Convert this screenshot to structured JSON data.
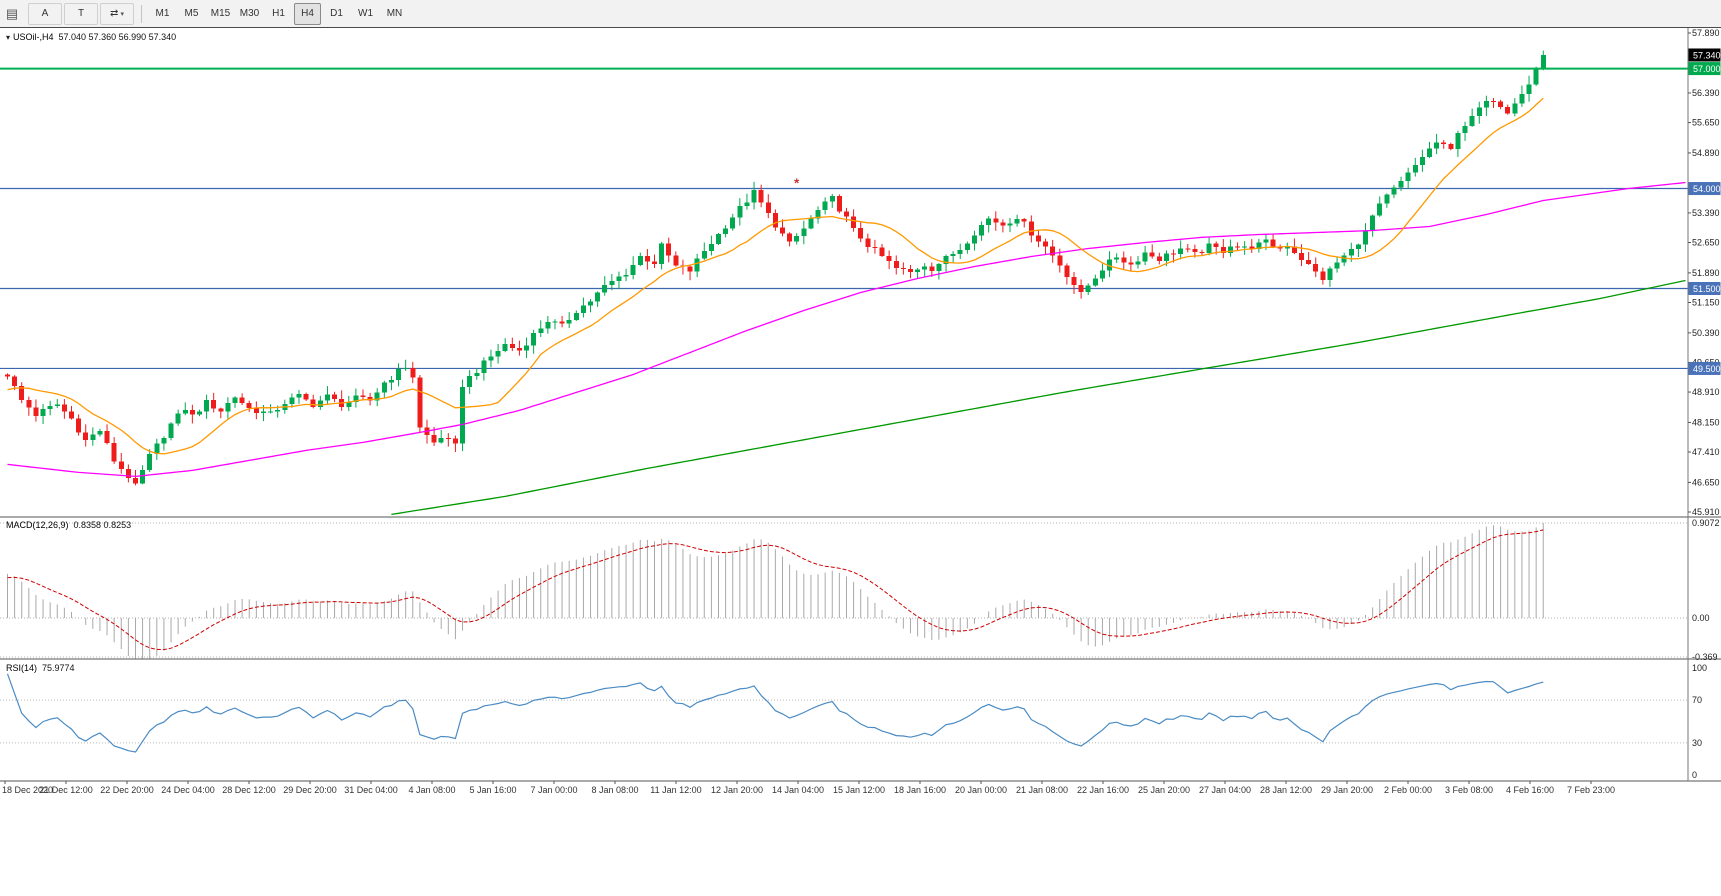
{
  "toolbar": {
    "window_icon_glyph": "▤",
    "tools": [
      {
        "name": "tool-a",
        "label": "A"
      },
      {
        "name": "tool-t",
        "label": "T"
      },
      {
        "name": "chart-shift",
        "glyph": "⇄",
        "caret": "▾"
      }
    ],
    "timeframes": [
      "M1",
      "M5",
      "M15",
      "M30",
      "H1",
      "H4",
      "D1",
      "W1",
      "MN"
    ],
    "active_timeframe": "H4"
  },
  "chart": {
    "title_symbol": "USOil-,H4",
    "title_ohlc": "57.040 57.360 56.990 57.340",
    "dropdown_glyph": "▾",
    "current_price": {
      "label": "57.340",
      "price": 57.34,
      "bg": "#000000",
      "fg": "#ffffff"
    },
    "price_axis_ticks": [
      "57.890",
      "56.390",
      "55.650",
      "54.890",
      "53.390",
      "52.650",
      "51.890",
      "51.150",
      "50.390",
      "49.650",
      "48.910",
      "48.150",
      "47.410",
      "46.650",
      "45.910"
    ],
    "horizontal_lines": [
      {
        "price": 57.0,
        "label": "57.000",
        "color": "#00b050",
        "width": 2
      },
      {
        "price": 54.0,
        "label": "54.000",
        "color": "#3c66b0",
        "width": 1.2
      },
      {
        "price": 51.5,
        "label": "51.500",
        "color": "#3c66b0",
        "width": 1.2
      },
      {
        "price": 49.5,
        "label": "49.500",
        "color": "#3c66b0",
        "width": 1.2
      }
    ],
    "annotations": [
      {
        "index": 111,
        "price": 54.12,
        "glyph": "*",
        "color": "#d03030"
      }
    ]
  },
  "macd_panel": {
    "name": "MACD(12,26,9)",
    "values": "0.8358 0.8253",
    "axis_labels": [
      "0.9072",
      "0.00",
      "-0.369"
    ]
  },
  "rsi_panel": {
    "name": "RSI(14)",
    "value": "75.9774",
    "axis_labels": [
      "100",
      "70",
      "30",
      "0"
    ],
    "levels": [
      70,
      30
    ]
  },
  "time_axis": {
    "labels": [
      "18 Dec 2020",
      "21 Dec 12:00",
      "22 Dec 20:00",
      "24 Dec 04:00",
      "28 Dec 12:00",
      "29 Dec 20:00",
      "31 Dec 04:00",
      "4 Jan 08:00",
      "5 Jan 16:00",
      "7 Jan 00:00",
      "8 Jan 08:00",
      "11 Jan 12:00",
      "12 Jan 20:00",
      "14 Jan 04:00",
      "15 Jan 12:00",
      "18 Jan 16:00",
      "20 Jan 00:00",
      "21 Jan 08:00",
      "22 Jan 16:00",
      "25 Jan 20:00",
      "27 Jan 04:00",
      "28 Jan 12:00",
      "29 Jan 20:00",
      "2 Feb 00:00",
      "3 Feb 08:00",
      "4 Feb 16:00",
      "7 Feb 23:00"
    ]
  },
  "chart_data": {
    "type": "candlestick",
    "symbol": "USOil-",
    "timeframe": "H4",
    "ohlc_display": {
      "open": 57.04,
      "high": 57.36,
      "low": 56.99,
      "close": 57.34
    },
    "last_close": 57.34,
    "candle_count": 217,
    "price_axis_range": [
      45.91,
      57.89
    ],
    "close_anchors": [
      [
        0,
        49.35
      ],
      [
        2,
        48.7
      ],
      [
        4,
        48.35
      ],
      [
        7,
        48.6
      ],
      [
        9,
        48.25
      ],
      [
        11,
        47.7
      ],
      [
        13,
        47.95
      ],
      [
        15,
        47.2
      ],
      [
        17,
        46.8
      ],
      [
        18,
        46.55
      ],
      [
        20,
        47.3
      ],
      [
        23,
        48.1
      ],
      [
        25,
        48.5
      ],
      [
        26,
        48.3
      ],
      [
        28,
        48.65
      ],
      [
        30,
        48.45
      ],
      [
        32,
        48.8
      ],
      [
        34,
        48.5
      ],
      [
        37,
        48.35
      ],
      [
        39,
        48.65
      ],
      [
        41,
        48.8
      ],
      [
        43,
        48.6
      ],
      [
        45,
        48.8
      ],
      [
        47,
        48.6
      ],
      [
        49,
        48.75
      ],
      [
        51,
        48.7
      ],
      [
        53,
        49.15
      ],
      [
        56,
        49.55
      ],
      [
        57,
        49.3
      ],
      [
        58,
        48.0
      ],
      [
        60,
        47.65
      ],
      [
        61,
        47.8
      ],
      [
        63,
        47.55
      ],
      [
        64,
        49.1
      ],
      [
        66,
        49.45
      ],
      [
        68,
        49.8
      ],
      [
        70,
        50.1
      ],
      [
        72,
        49.95
      ],
      [
        74,
        50.35
      ],
      [
        76,
        50.7
      ],
      [
        78,
        50.55
      ],
      [
        80,
        50.95
      ],
      [
        82,
        51.2
      ],
      [
        84,
        51.55
      ],
      [
        87,
        51.9
      ],
      [
        89,
        52.3
      ],
      [
        91,
        52.15
      ],
      [
        92,
        52.55
      ],
      [
        94,
        52.05
      ],
      [
        96,
        51.95
      ],
      [
        98,
        52.45
      ],
      [
        100,
        52.85
      ],
      [
        102,
        53.3
      ],
      [
        104,
        53.7
      ],
      [
        105,
        53.9
      ],
      [
        107,
        53.35
      ],
      [
        109,
        52.85
      ],
      [
        110,
        52.6
      ],
      [
        112,
        53.0
      ],
      [
        114,
        53.45
      ],
      [
        116,
        53.75
      ],
      [
        118,
        53.25
      ],
      [
        119,
        52.95
      ],
      [
        121,
        52.6
      ],
      [
        123,
        52.3
      ],
      [
        125,
        52.0
      ],
      [
        127,
        51.9
      ],
      [
        129,
        52.1
      ],
      [
        130,
        52.0
      ],
      [
        132,
        52.25
      ],
      [
        134,
        52.5
      ],
      [
        136,
        52.9
      ],
      [
        138,
        53.25
      ],
      [
        140,
        53.1
      ],
      [
        142,
        53.3
      ],
      [
        144,
        52.9
      ],
      [
        146,
        52.55
      ],
      [
        148,
        52.1
      ],
      [
        150,
        51.6
      ],
      [
        151,
        51.35
      ],
      [
        153,
        51.8
      ],
      [
        154,
        52.0
      ],
      [
        156,
        52.3
      ],
      [
        158,
        52.1
      ],
      [
        160,
        52.4
      ],
      [
        162,
        52.25
      ],
      [
        165,
        52.5
      ],
      [
        167,
        52.35
      ],
      [
        169,
        52.55
      ],
      [
        171,
        52.45
      ],
      [
        172,
        52.6
      ],
      [
        174,
        52.5
      ],
      [
        177,
        52.65
      ],
      [
        179,
        52.5
      ],
      [
        180,
        52.6
      ],
      [
        182,
        52.25
      ],
      [
        184,
        51.9
      ],
      [
        185,
        51.75
      ],
      [
        187,
        52.15
      ],
      [
        189,
        52.45
      ],
      [
        191,
        52.9
      ],
      [
        192,
        53.3
      ],
      [
        194,
        53.8
      ],
      [
        196,
        54.15
      ],
      [
        197,
        54.35
      ],
      [
        199,
        54.8
      ],
      [
        201,
        55.15
      ],
      [
        203,
        54.95
      ],
      [
        204,
        55.45
      ],
      [
        206,
        55.75
      ],
      [
        207,
        56.0
      ],
      [
        209,
        56.25
      ],
      [
        211,
        55.95
      ],
      [
        212,
        56.2
      ],
      [
        214,
        56.6
      ],
      [
        215,
        57.0
      ],
      [
        216,
        57.34
      ]
    ],
    "ma_fast": {
      "period": 12,
      "color": "#ff9900"
    },
    "ma_mid_anchors": [
      [
        0,
        47.1
      ],
      [
        10,
        46.9
      ],
      [
        18,
        46.8
      ],
      [
        26,
        46.95
      ],
      [
        34,
        47.2
      ],
      [
        42,
        47.45
      ],
      [
        50,
        47.65
      ],
      [
        58,
        47.9
      ],
      [
        64,
        48.1
      ],
      [
        72,
        48.45
      ],
      [
        80,
        48.9
      ],
      [
        88,
        49.35
      ],
      [
        96,
        49.9
      ],
      [
        104,
        50.45
      ],
      [
        112,
        50.95
      ],
      [
        120,
        51.4
      ],
      [
        128,
        51.75
      ],
      [
        136,
        52.05
      ],
      [
        144,
        52.3
      ],
      [
        152,
        52.5
      ],
      [
        160,
        52.65
      ],
      [
        168,
        52.78
      ],
      [
        176,
        52.85
      ],
      [
        184,
        52.9
      ],
      [
        192,
        52.95
      ],
      [
        200,
        53.05
      ],
      [
        208,
        53.35
      ],
      [
        216,
        53.7
      ],
      [
        228,
        54.0
      ],
      [
        236,
        54.15
      ]
    ],
    "ma_slow_anchors": [
      [
        54,
        45.85
      ],
      [
        70,
        46.3
      ],
      [
        90,
        47.0
      ],
      [
        110,
        47.65
      ],
      [
        130,
        48.3
      ],
      [
        150,
        48.95
      ],
      [
        170,
        49.55
      ],
      [
        190,
        50.15
      ],
      [
        210,
        50.8
      ],
      [
        224,
        51.25
      ],
      [
        236,
        51.7
      ]
    ],
    "indicators": {
      "macd": {
        "params": [
          12,
          26,
          9
        ],
        "main": 0.8358,
        "signal": 0.8253
      },
      "rsi": {
        "period": 14,
        "value": 75.9774
      }
    },
    "colors": {
      "up": "#00a94f",
      "down": "#ef1c1c",
      "ma_fast": "#ff9900",
      "ma_mid": "#ff00ff",
      "ma_slow": "#009900",
      "macd_hist": "#a9a9a9",
      "macd_signal": "#d00000",
      "rsi_line": "#4a8bc4"
    }
  }
}
